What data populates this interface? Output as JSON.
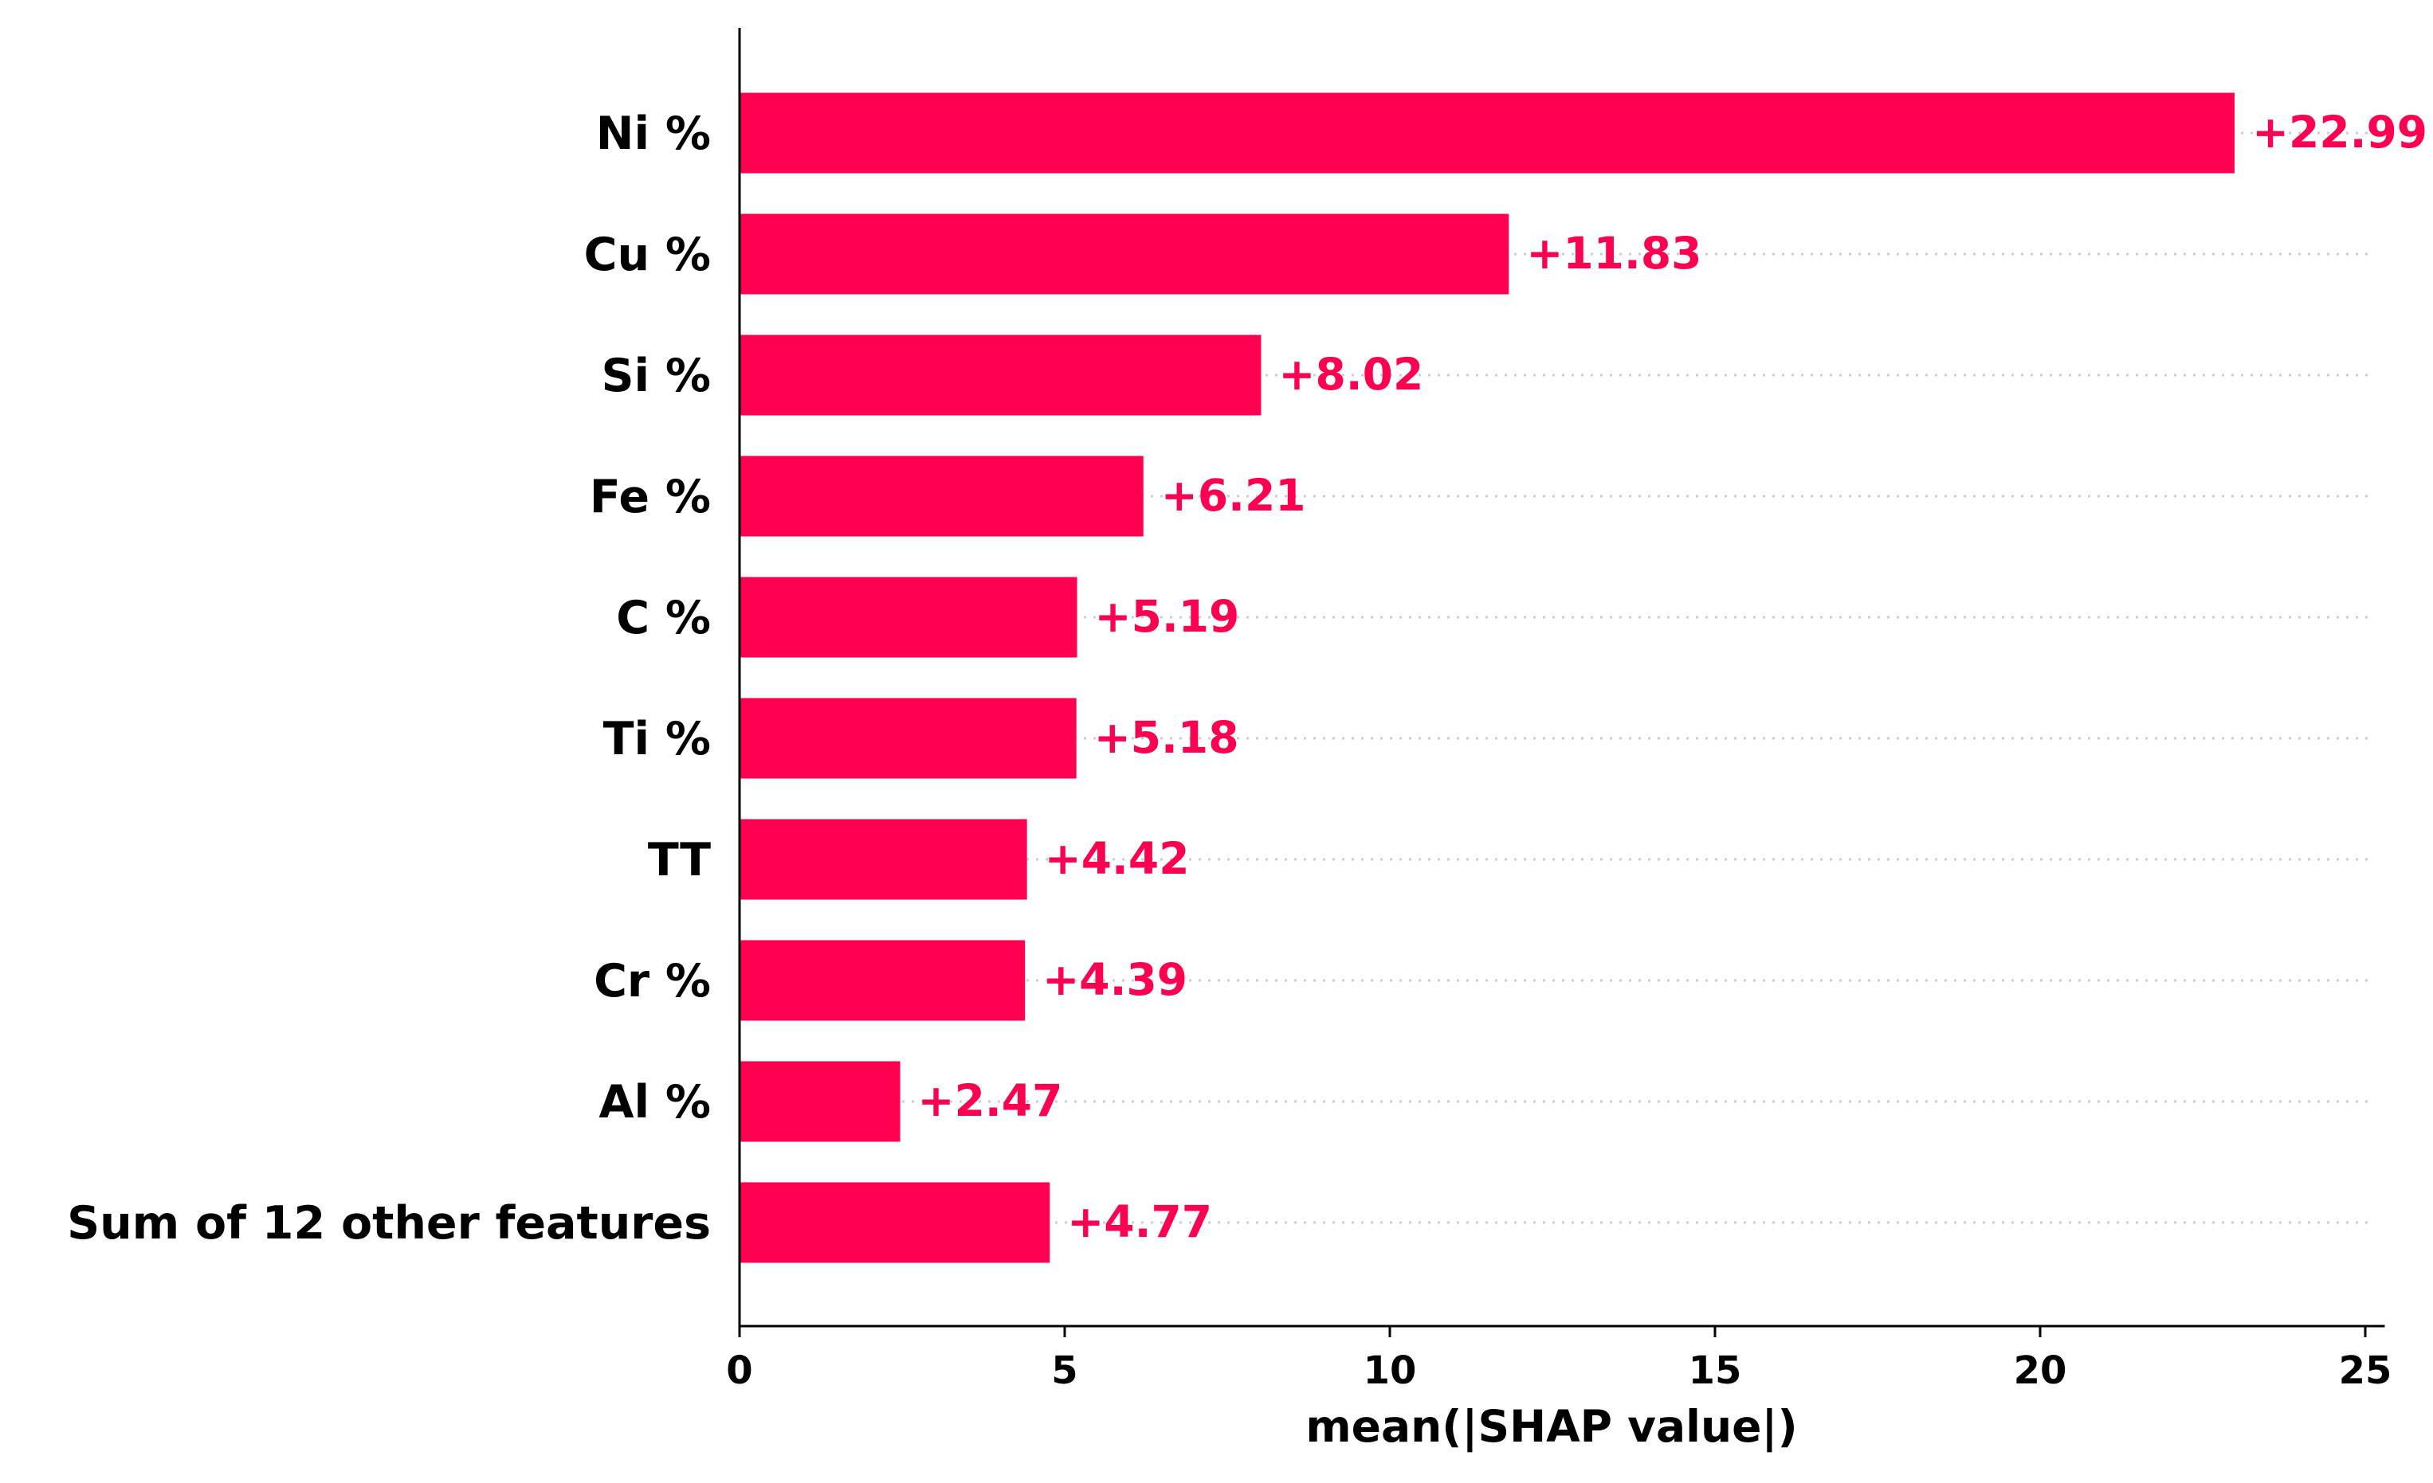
{
  "chart_data": {
    "type": "bar",
    "orientation": "horizontal",
    "categories": [
      "Ni %",
      "Cu %",
      "Si %",
      "Fe %",
      "C %",
      "Ti %",
      "TT",
      "Cr %",
      "Al %",
      "Sum of 12 other features"
    ],
    "values": [
      22.99,
      11.83,
      8.02,
      6.21,
      5.19,
      5.18,
      4.42,
      4.39,
      2.47,
      4.77
    ],
    "value_labels": [
      "+22.99",
      "+11.83",
      "+8.02",
      "+6.21",
      "+5.19",
      "+5.18",
      "+4.42",
      "+4.39",
      "+2.47",
      "+4.77"
    ],
    "xlabel": "mean(|SHAP value|)",
    "xlim": [
      0,
      25.3
    ],
    "xticks": [
      0,
      5,
      10,
      15,
      20,
      25
    ],
    "xtick_labels": [
      "0",
      "5",
      "10",
      "15",
      "20",
      "25"
    ],
    "grid": "dotted horizontal guide lines per row",
    "colors": {
      "bar": "#FF0051",
      "value_label": "#FF0051",
      "axis": "#000000",
      "grid": "#cccccc"
    }
  }
}
